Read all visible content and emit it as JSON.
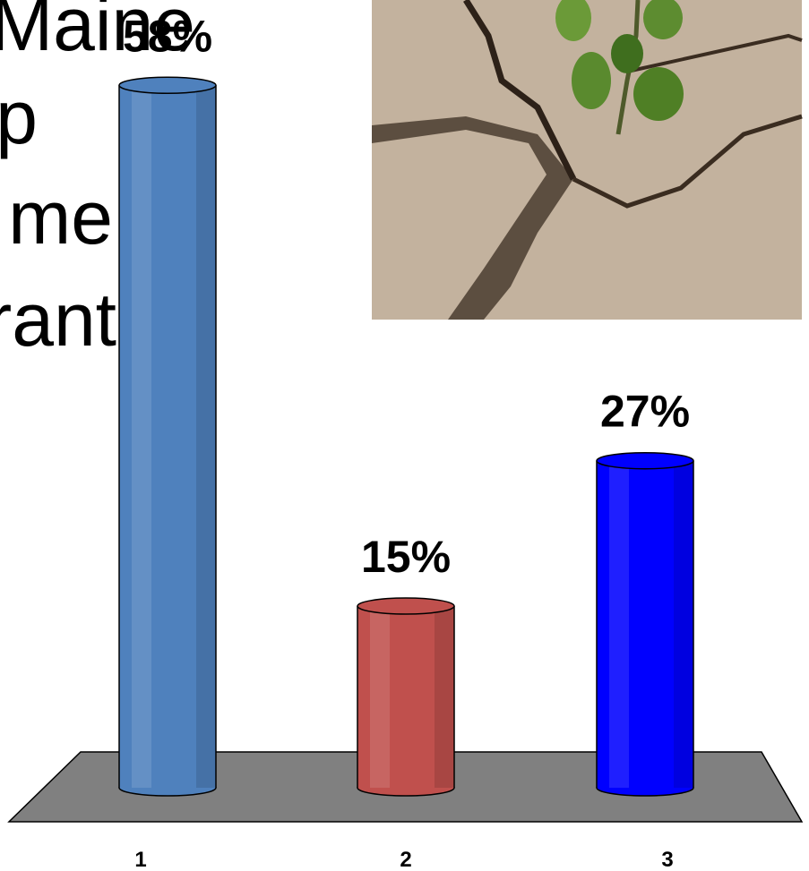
{
  "slide_text_lines": [
    "Maine",
    "p",
    "me",
    "rant"
  ],
  "chart_data": {
    "type": "bar",
    "categories": [
      "1",
      "2",
      "3"
    ],
    "values": [
      58,
      15,
      27
    ],
    "value_labels": [
      "58%",
      "15%",
      "27%"
    ],
    "colors": [
      "#4f81bd",
      "#c0504d",
      "#0000ff"
    ]
  }
}
